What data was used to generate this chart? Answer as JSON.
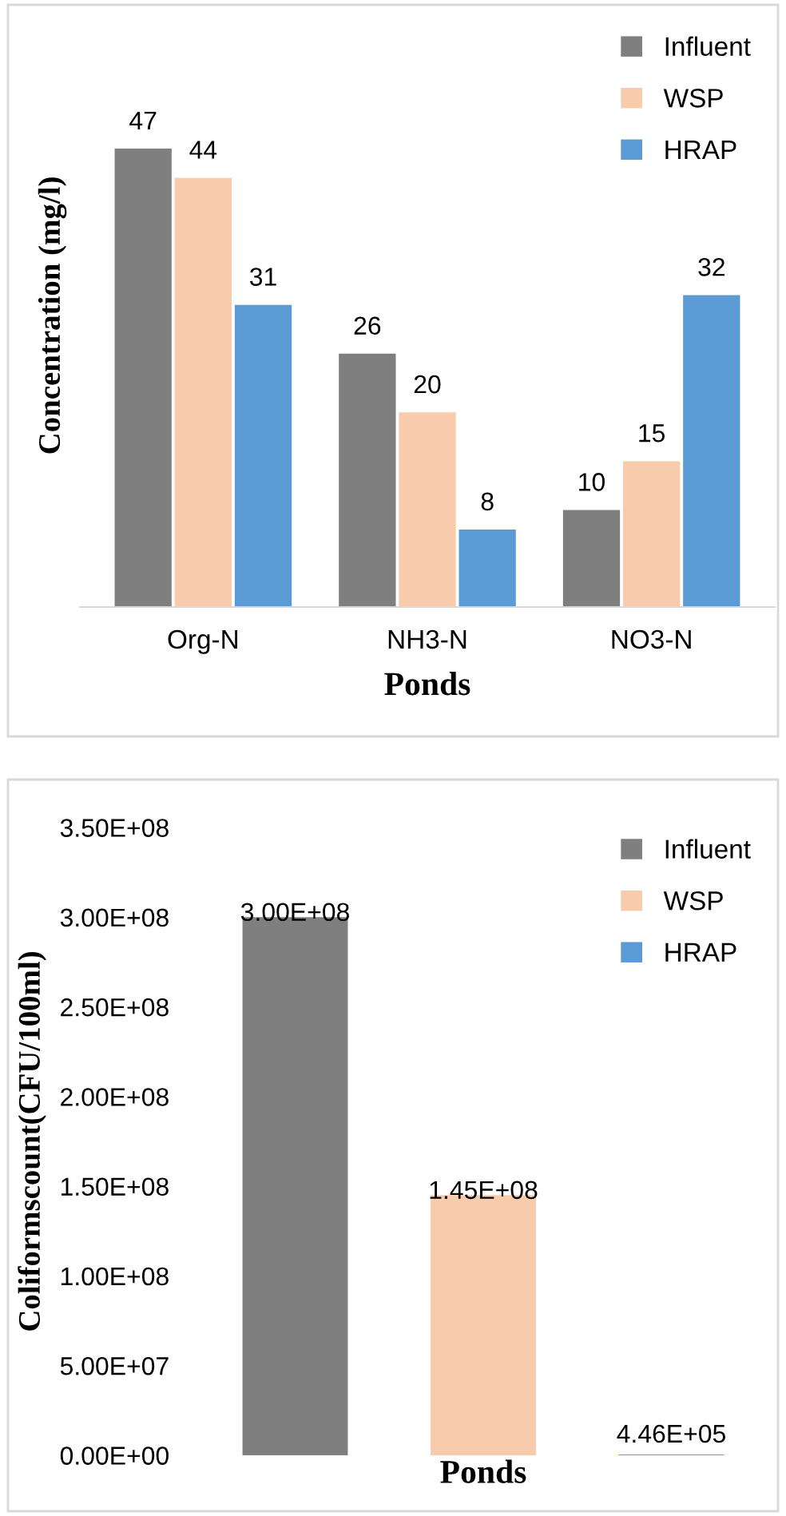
{
  "chart_data": [
    {
      "type": "bar",
      "xlabel": "Ponds",
      "ylabel": "Concentration (mg/l)",
      "categories": [
        "Org-N",
        "NH3-N",
        "NO3-N"
      ],
      "series": [
        {
          "name": "Influent",
          "color": "#7f7f7f",
          "values": [
            47,
            26,
            10
          ]
        },
        {
          "name": "WSP",
          "color": "#f8cbad",
          "values": [
            44,
            20,
            15
          ]
        },
        {
          "name": "HRAP",
          "color": "#5b9bd5",
          "values": [
            31,
            8,
            32
          ]
        }
      ],
      "data_labels": true,
      "legend": "top right",
      "grid": false,
      "tick_labels": "x"
    },
    {
      "type": "bar",
      "xlabel": "Ponds",
      "ylabel": "Coliformscount(CFU/100ml)",
      "categories": [
        null,
        null,
        null
      ],
      "series": [
        {
          "name": "Influent",
          "color": "#7f7f7f",
          "values": [
            300000000,
            null,
            null
          ],
          "value_labels": [
            "3.00E+08",
            null,
            null
          ]
        },
        {
          "name": "WSP",
          "color": "#f8cbad",
          "values": [
            null,
            145000000,
            null
          ],
          "value_labels": [
            null,
            "1.45E+08",
            null
          ]
        },
        {
          "name": "HRAP",
          "color": "#5b9bd5",
          "values": [
            null,
            null,
            446000
          ],
          "value_labels": [
            null,
            null,
            "4.46E+05"
          ]
        }
      ],
      "ylim": [
        0,
        350000000
      ],
      "yticks": [
        {
          "value": 0,
          "label": "0.00E+00"
        },
        {
          "value": 50000000,
          "label": "5.00E+07"
        },
        {
          "value": 100000000,
          "label": "1.00E+08"
        },
        {
          "value": 150000000,
          "label": "1.50E+08"
        },
        {
          "value": 200000000,
          "label": "2.00E+08"
        },
        {
          "value": 250000000,
          "label": "2.50E+08"
        },
        {
          "value": 300000000,
          "label": "3.00E+08"
        },
        {
          "value": 350000000,
          "label": "3.50E+08"
        }
      ],
      "legend": "top right",
      "grid": false,
      "tick_labels": "y"
    }
  ]
}
